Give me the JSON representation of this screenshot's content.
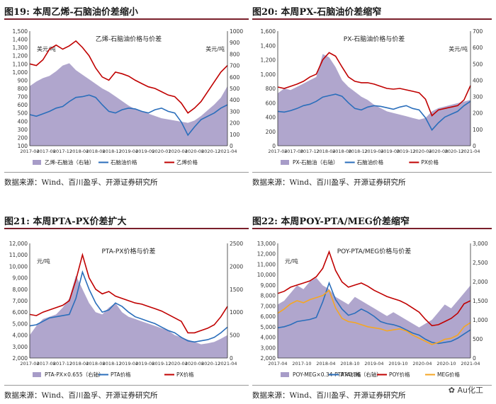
{
  "source_text": "数据来源：Wind、百川盈孚、开源证券研究所",
  "watermark": "Au化工",
  "colors": {
    "area": "#a79cc8",
    "blue": "#2a6ebb",
    "red": "#c00000",
    "orange": "#f5a623",
    "title_rule": "#7a1f2b"
  },
  "chart_data": [
    {
      "id": "fig19",
      "type": "line+area",
      "fig_label": "图19:",
      "fig_title": "本周乙烯-石脑油价差缩小",
      "title": "乙烯-石脑油价格与价差",
      "ylabel": "",
      "y2label": "美元/吨",
      "unit_left": "美元/吨",
      "yticks": [
        "1,500",
        "1,400",
        "1,300",
        "1,200",
        "1,100",
        "1,000",
        "900",
        "800",
        "700",
        "600",
        "500",
        "400",
        "300",
        "200",
        "100"
      ],
      "ylim": [
        100,
        1500
      ],
      "y2ticks": [
        "1000",
        "900",
        "800",
        "700",
        "600",
        "500",
        "400",
        "300",
        "200",
        "100",
        "0"
      ],
      "y2lim": [
        0,
        1000
      ],
      "xticks": [
        "2017-04",
        "2017-08",
        "2017-12",
        "2018-04",
        "2018-08",
        "2018-12",
        "2019-04",
        "2019-09",
        "2020-01",
        "2020-04",
        "2020-08",
        "2020-12",
        "2021-04"
      ],
      "series": [
        {
          "name": "乙烯-石脑油（右轴）",
          "kind": "area",
          "axis": "right",
          "color": "#a79cc8",
          "values": [
            520,
            560,
            590,
            610,
            650,
            700,
            720,
            660,
            620,
            580,
            540,
            500,
            470,
            430,
            390,
            350,
            320,
            300,
            280,
            260,
            240,
            230,
            220,
            210,
            200,
            220,
            260,
            310,
            360,
            420,
            520
          ]
        },
        {
          "name": "石脑油价格",
          "kind": "line",
          "axis": "left",
          "color": "#2a6ebb",
          "values": [
            480,
            460,
            490,
            520,
            560,
            580,
            640,
            690,
            700,
            720,
            690,
            600,
            520,
            500,
            540,
            560,
            550,
            520,
            500,
            540,
            560,
            520,
            500,
            390,
            230,
            330,
            420,
            460,
            500,
            560,
            600
          ]
        },
        {
          "name": "乙烯价格",
          "kind": "line",
          "axis": "left",
          "color": "#c00000",
          "values": [
            1100,
            1080,
            1150,
            1280,
            1330,
            1280,
            1320,
            1380,
            1300,
            1200,
            1050,
            940,
            900,
            1000,
            980,
            950,
            900,
            860,
            820,
            800,
            760,
            720,
            700,
            620,
            500,
            560,
            640,
            760,
            880,
            1000,
            1080
          ]
        }
      ]
    },
    {
      "id": "fig20",
      "type": "line+area",
      "fig_label": "图20:",
      "fig_title": "本周PX-石脑油价差缩窄",
      "title": "PX-石脑油价格与价差",
      "ylabel": "",
      "y2label": "美元/吨",
      "unit_left": "",
      "yticks": [
        "1,600",
        "1,400",
        "1,200",
        "1,000",
        "800",
        "600",
        "400",
        "200",
        "0"
      ],
      "ylim": [
        0,
        1600
      ],
      "y2ticks": [
        "700",
        "600",
        "500",
        "400",
        "300",
        "200",
        "100",
        "0"
      ],
      "y2lim": [
        0,
        700
      ],
      "xticks": [
        "2017-04",
        "2017-08",
        "2017-12",
        "2018-04",
        "2018-08",
        "2018-12",
        "2019-04",
        "2019-08",
        "2019-12",
        "2020-04",
        "2020-08",
        "2020-12",
        "2021-04"
      ],
      "series": [
        {
          "name": "PX-石脑油（右轴）",
          "kind": "area",
          "axis": "right",
          "color": "#a79cc8",
          "values": [
            320,
            350,
            340,
            360,
            380,
            400,
            420,
            560,
            540,
            480,
            400,
            360,
            330,
            300,
            280,
            250,
            230,
            210,
            200,
            190,
            180,
            170,
            160,
            170,
            210,
            230,
            240,
            250,
            260,
            270,
            280
          ]
        },
        {
          "name": "石脑油价格",
          "kind": "line",
          "axis": "left",
          "color": "#2a6ebb",
          "values": [
            480,
            470,
            490,
            520,
            560,
            580,
            620,
            680,
            700,
            720,
            690,
            600,
            520,
            500,
            540,
            560,
            550,
            530,
            510,
            540,
            560,
            520,
            500,
            390,
            220,
            320,
            400,
            440,
            480,
            560,
            620
          ]
        },
        {
          "name": "PX价格",
          "kind": "line",
          "axis": "left",
          "color": "#c00000",
          "values": [
            820,
            800,
            830,
            860,
            900,
            960,
            1000,
            1200,
            1300,
            1250,
            1100,
            960,
            900,
            880,
            880,
            860,
            830,
            800,
            790,
            800,
            780,
            760,
            740,
            650,
            420,
            500,
            520,
            540,
            560,
            640,
            840
          ]
        }
      ]
    },
    {
      "id": "fig21",
      "type": "line+area",
      "fig_label": "图21:",
      "fig_title": "本周PTA-PX价差扩大",
      "title": "PTA-PX价格与价差",
      "ylabel": "",
      "y2label": "",
      "unit_left": "元/吨",
      "yticks": [
        "12,000",
        "11,000",
        "10,000",
        "9,000",
        "8,000",
        "7,000",
        "6,000",
        "5,000",
        "4,000",
        "3,000",
        "2,000"
      ],
      "ylim": [
        2000,
        12000
      ],
      "y2ticks": [
        "2500",
        "2000",
        "1500",
        "1000",
        "500",
        "0"
      ],
      "y2lim": [
        0,
        2500
      ],
      "xticks": [
        "2017-04",
        "2017-08",
        "2017-12",
        "2018-04",
        "2018-08",
        "2018-12",
        "2019-04",
        "2019-08",
        "2019-12",
        "2020-04",
        "2020-08",
        "2020-12",
        "2021-04"
      ],
      "series": [
        {
          "name": "PTA-PX×0.655（右轴）",
          "kind": "area",
          "axis": "right",
          "color": "#a79cc8",
          "values": [
            500,
            700,
            850,
            900,
            950,
            1100,
            1300,
            1800,
            1500,
            1200,
            1000,
            950,
            1100,
            1200,
            1000,
            900,
            850,
            800,
            750,
            700,
            650,
            600,
            500,
            450,
            400,
            350,
            300,
            320,
            350,
            420,
            500
          ]
        },
        {
          "name": "PTA价格",
          "kind": "line",
          "axis": "left",
          "color": "#2a6ebb",
          "values": [
            4800,
            4900,
            5200,
            5500,
            5600,
            5700,
            5800,
            7200,
            9500,
            8000,
            6800,
            6000,
            6200,
            6800,
            6500,
            6000,
            5600,
            5400,
            5200,
            5000,
            4700,
            4400,
            4200,
            3800,
            3500,
            3400,
            3500,
            3600,
            3800,
            4200,
            4700
          ]
        },
        {
          "name": "PX价格",
          "kind": "line",
          "axis": "left",
          "color": "#c00000",
          "values": [
            5800,
            5700,
            6000,
            6200,
            6400,
            6600,
            7000,
            8800,
            11000,
            9000,
            8000,
            7600,
            7800,
            7400,
            7200,
            7000,
            6800,
            6700,
            6500,
            6300,
            6100,
            5800,
            5500,
            5200,
            4200,
            4200,
            4400,
            4600,
            4900,
            5600,
            6500
          ]
        }
      ]
    },
    {
      "id": "fig22",
      "type": "line+area",
      "fig_label": "图22:",
      "fig_title": "本周POY-PTA/MEG价差缩窄",
      "title": "POY-PTA/MEG价格与价差",
      "ylabel": "",
      "y2label": "",
      "unit_left": "元/吨",
      "yticks": [
        "13,000",
        "12,000",
        "11,000",
        "10,000",
        "9,000",
        "8,000",
        "7,000",
        "6,000",
        "5,000",
        "4,000",
        "3,000",
        "2,000"
      ],
      "ylim": [
        2000,
        13000
      ],
      "y2ticks": [
        "3,000",
        "2,500",
        "2,000",
        "1,500",
        "1,000",
        "500",
        "0"
      ],
      "y2lim": [
        0,
        3000
      ],
      "xticks": [
        "2017-04",
        "2017-10",
        "2018-04",
        "2018-10",
        "2019-04",
        "2019-10",
        "2020-04",
        "2020-10",
        "2021-04"
      ],
      "series": [
        {
          "name": "POY-MEG×0.34-PTA×0.86（右轴）",
          "kind": "area",
          "axis": "right",
          "color": "#a79cc8",
          "values": [
            1400,
            1500,
            1700,
            1900,
            1800,
            2000,
            2100,
            1900,
            1800,
            1600,
            1500,
            1400,
            1600,
            1500,
            1400,
            1300,
            1200,
            1100,
            1200,
            1100,
            1000,
            900,
            800,
            900,
            1000,
            1200,
            1400,
            1300,
            1500,
            1700,
            1900
          ]
        },
        {
          "name": "PTA价格",
          "kind": "line",
          "axis": "left",
          "color": "#2a6ebb",
          "values": [
            4900,
            5000,
            5200,
            5500,
            5600,
            5700,
            5900,
            7400,
            9200,
            7600,
            6700,
            6100,
            6300,
            6700,
            6400,
            6000,
            5500,
            5300,
            5200,
            5000,
            4700,
            4400,
            4200,
            3800,
            3500,
            3400,
            3500,
            3600,
            3900,
            4300,
            4700
          ]
        },
        {
          "name": "POY价格",
          "kind": "line",
          "axis": "left",
          "color": "#c00000",
          "values": [
            8200,
            8400,
            8800,
            9000,
            9200,
            9400,
            9800,
            10600,
            12200,
            10400,
            9300,
            8800,
            9000,
            9200,
            8900,
            8500,
            8200,
            7900,
            7700,
            7500,
            7200,
            6800,
            6400,
            5700,
            5100,
            5200,
            5500,
            5800,
            6300,
            7200,
            7500
          ]
        },
        {
          "name": "MEG价格",
          "kind": "line",
          "axis": "left",
          "color": "#f5a623",
          "values": [
            6300,
            6700,
            7200,
            7500,
            7300,
            7600,
            7800,
            8000,
            8500,
            6800,
            5800,
            5500,
            5400,
            5200,
            5000,
            4900,
            4800,
            4600,
            4700,
            4800,
            4600,
            4200,
            3900,
            3600,
            3300,
            3500,
            3800,
            3900,
            4200,
            5000,
            5400
          ]
        }
      ]
    }
  ]
}
